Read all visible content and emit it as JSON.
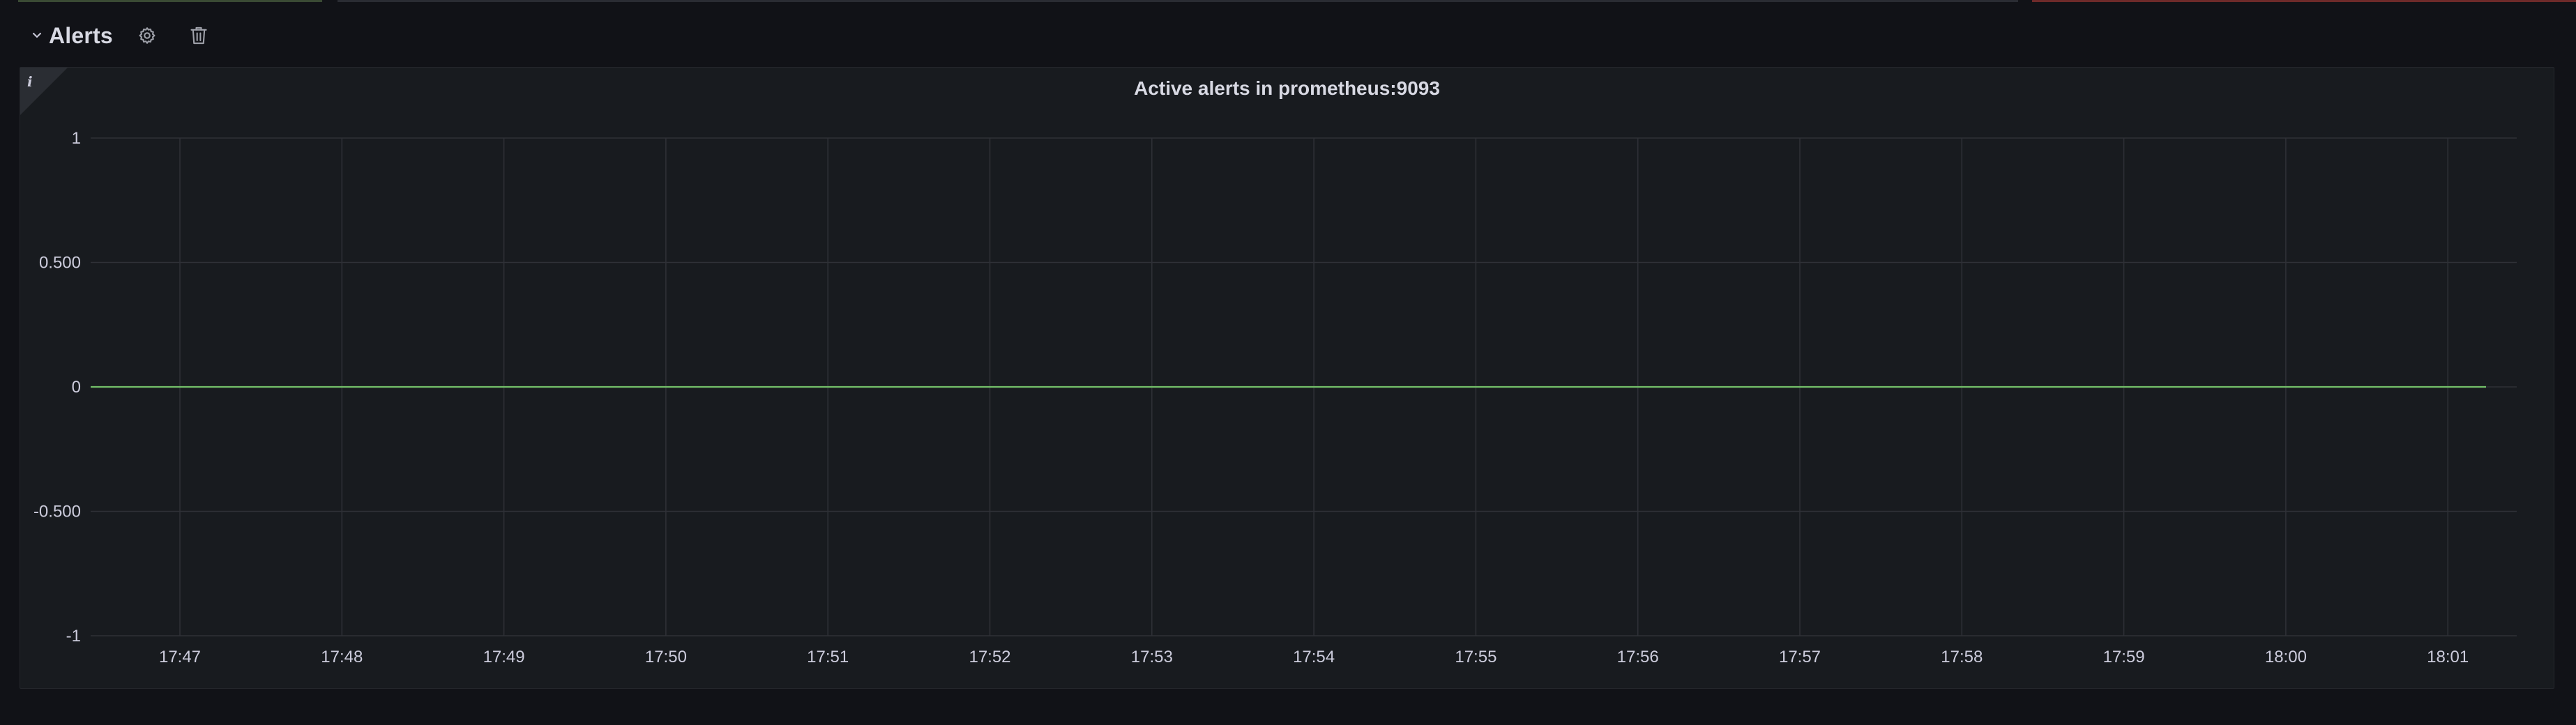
{
  "row": {
    "title": "Alerts",
    "actions": [
      {
        "icon": "gear-icon"
      },
      {
        "icon": "trash-icon"
      }
    ]
  },
  "panel": {
    "title": "Active alerts in prometheus:9093",
    "info_icon": "info-icon"
  },
  "colors": {
    "background": "#111217",
    "panel": "#181b1f",
    "grid": "#2f3137",
    "series": "#73bf69",
    "text": "#ccccdc"
  },
  "chart_data": {
    "type": "line",
    "title": "Active alerts in prometheus:9093",
    "xlabel": "",
    "ylabel": "",
    "x": [
      "17:47",
      "17:48",
      "17:49",
      "17:50",
      "17:51",
      "17:52",
      "17:53",
      "17:54",
      "17:55",
      "17:56",
      "17:57",
      "17:58",
      "17:59",
      "18:00",
      "18:01"
    ],
    "ylim": [
      -1,
      1
    ],
    "y_ticks": [
      {
        "value": 1,
        "label": "1"
      },
      {
        "value": 0.5,
        "label": "0.500"
      },
      {
        "value": 0,
        "label": "0"
      },
      {
        "value": -0.5,
        "label": "-0.500"
      },
      {
        "value": -1,
        "label": "-1"
      }
    ],
    "series": [
      {
        "color": "#73bf69",
        "values": [
          0,
          0,
          0,
          0,
          0,
          0,
          0,
          0,
          0,
          0,
          0,
          0,
          0,
          0,
          0
        ]
      }
    ],
    "grid": true,
    "legend": "none"
  }
}
